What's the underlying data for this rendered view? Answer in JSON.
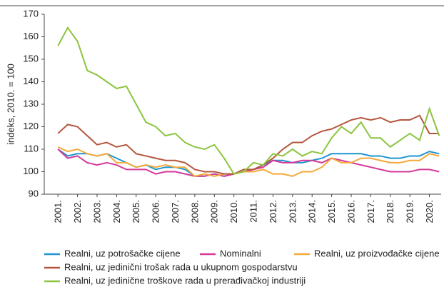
{
  "chart_data": {
    "type": "line",
    "y_label": "indeks, 2010. = 100",
    "x": [
      2001.0,
      2001.5,
      2002.0,
      2002.5,
      2003.0,
      2003.5,
      2004.0,
      2004.5,
      2005.0,
      2005.5,
      2006.0,
      2006.5,
      2007.0,
      2007.5,
      2008.0,
      2008.5,
      2009.0,
      2009.5,
      2010.0,
      2010.5,
      2011.0,
      2011.5,
      2012.0,
      2012.5,
      2013.0,
      2013.5,
      2014.0,
      2014.5,
      2015.0,
      2015.5,
      2016.0,
      2016.5,
      2017.0,
      2017.5,
      2018.0,
      2018.5,
      2019.0,
      2019.5,
      2020.0,
      2020.5
    ],
    "xlim": [
      2000.3,
      2020.6
    ],
    "xticks": [
      {
        "value": 2001,
        "label": "2001."
      },
      {
        "value": 2002,
        "label": "2002."
      },
      {
        "value": 2003,
        "label": "2003."
      },
      {
        "value": 2004,
        "label": "2004."
      },
      {
        "value": 2005,
        "label": "2005."
      },
      {
        "value": 2006,
        "label": "2006."
      },
      {
        "value": 2007,
        "label": "2007."
      },
      {
        "value": 2008,
        "label": "2008."
      },
      {
        "value": 2009,
        "label": "2009."
      },
      {
        "value": 2010,
        "label": "2010."
      },
      {
        "value": 2011,
        "label": "2011."
      },
      {
        "value": 2012,
        "label": "2012."
      },
      {
        "value": 2013,
        "label": "2013."
      },
      {
        "value": 2014,
        "label": "2014."
      },
      {
        "value": 2015,
        "label": "2015."
      },
      {
        "value": 2016,
        "label": "2016."
      },
      {
        "value": 2017,
        "label": "2017."
      },
      {
        "value": 2018,
        "label": "2018."
      },
      {
        "value": 2019,
        "label": "2019."
      },
      {
        "value": 2020,
        "label": "2020."
      }
    ],
    "ylim": [
      90,
      170
    ],
    "yticks": [
      90,
      100,
      110,
      120,
      130,
      140,
      150,
      160,
      170
    ],
    "series": [
      {
        "name": "Realni, uz potrošačke cijene",
        "color": "#1f95d2",
        "values": [
          110,
          107,
          108,
          108,
          107,
          108,
          106,
          104,
          102,
          103,
          101,
          102,
          102,
          101,
          98,
          98,
          99,
          98,
          99,
          100,
          101,
          103,
          105,
          105,
          104,
          104,
          105,
          106,
          108,
          108,
          108,
          108,
          107,
          107,
          106,
          106,
          107,
          107,
          109,
          108
        ]
      },
      {
        "name": "Nominalni",
        "color": "#d43a9a",
        "values": [
          110,
          106,
          107,
          104,
          103,
          104,
          103,
          101,
          101,
          101,
          99,
          100,
          100,
          99,
          98,
          98,
          99,
          98,
          99,
          100,
          101,
          102,
          105,
          104,
          104,
          105,
          105,
          104,
          106,
          105,
          104,
          103,
          102,
          101,
          100,
          100,
          100,
          101,
          101,
          100
        ]
      },
      {
        "name": "Realni, uz proizvođačke cijene",
        "color": "#f4a93a",
        "values": [
          111,
          109,
          110,
          108,
          107,
          108,
          104,
          104,
          102,
          103,
          102,
          103,
          102,
          102,
          98,
          99,
          98,
          99,
          99,
          100,
          100,
          101,
          99,
          99,
          98,
          100,
          100,
          102,
          106,
          104,
          104,
          106,
          106,
          105,
          104,
          104,
          105,
          105,
          108,
          107
        ]
      },
      {
        "name": "Realni, uz jedinični trošak rada u ukupnom gospodarstvu",
        "color": "#b5553d",
        "values": [
          117,
          121,
          120,
          116,
          112,
          113,
          111,
          112,
          108,
          107,
          106,
          105,
          105,
          104,
          101,
          100,
          100,
          99,
          99,
          101,
          101,
          103,
          106,
          110,
          113,
          113,
          116,
          118,
          119,
          121,
          123,
          124,
          123,
          124,
          122,
          123,
          123,
          125,
          117,
          117
        ]
      },
      {
        "name": "Realni, uz jedinične troškove rada u prerađivačkoj industriji",
        "color": "#8cc43f",
        "values": [
          156,
          164,
          158,
          145,
          143,
          140,
          137,
          138,
          130,
          122,
          120,
          116,
          117,
          113,
          111,
          110,
          112,
          106,
          99,
          100,
          104,
          103,
          108,
          107,
          110,
          107,
          109,
          108,
          115,
          120,
          117,
          122,
          115,
          115,
          111,
          114,
          117,
          114,
          128,
          116
        ]
      }
    ]
  }
}
